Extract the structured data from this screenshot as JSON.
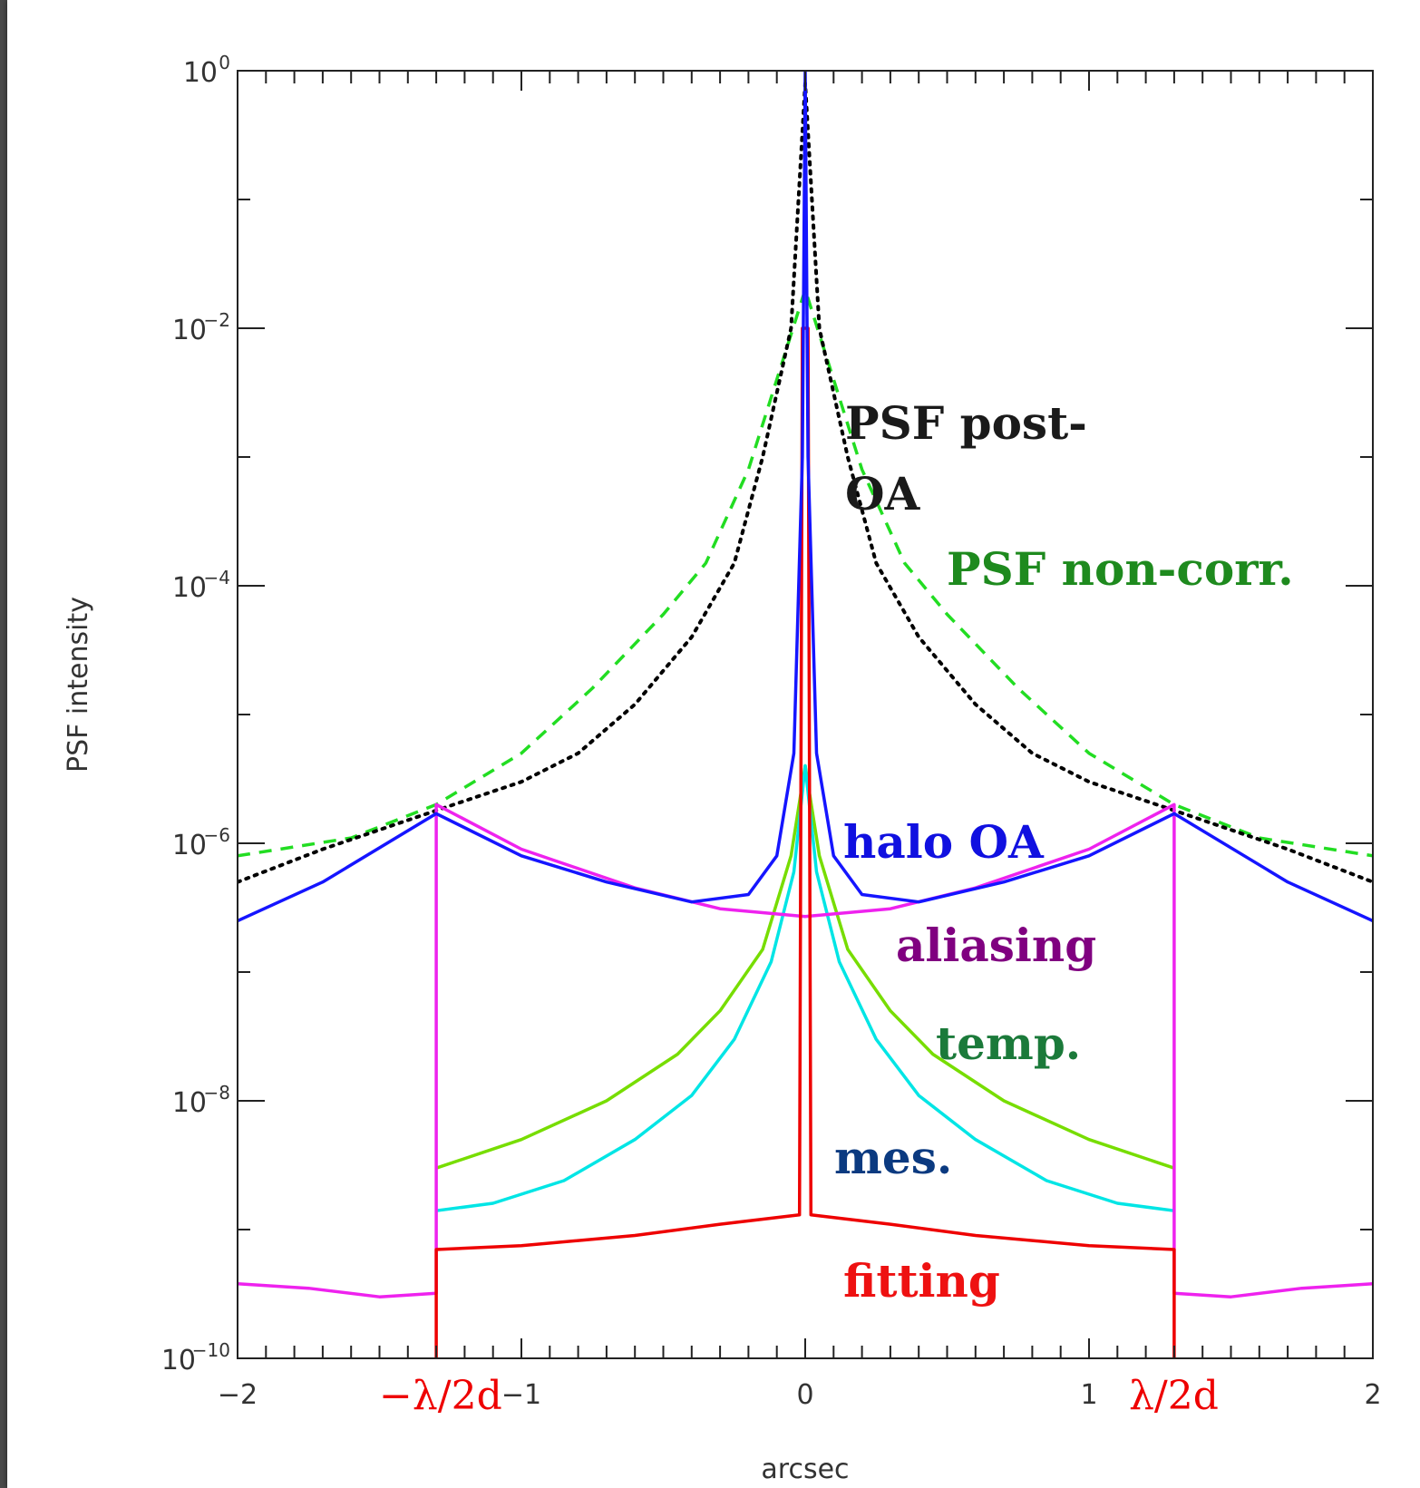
{
  "chart_data": {
    "type": "line",
    "xlabel": "arcsec",
    "ylabel": "PSF intensity",
    "xlim": [
      -2,
      2
    ],
    "ylim": [
      1e-10,
      1
    ],
    "yscale": "log",
    "xticks": [
      "-2",
      "-1",
      "0",
      "1",
      "2"
    ],
    "yticks": [
      {
        "base": "10",
        "exp": "0"
      },
      {
        "base": "10",
        "exp": "−2"
      },
      {
        "base": "10",
        "exp": "−4"
      },
      {
        "base": "10",
        "exp": "−6"
      },
      {
        "base": "10",
        "exp": "−8"
      },
      {
        "base": "10",
        "exp": "−10"
      }
    ],
    "cutoff_labels": {
      "left": "−λ/2d",
      "right": "λ/2d"
    },
    "cutoff_x": 1.3,
    "annotations": [
      {
        "name": "psf-post-oa",
        "text": "PSF post-",
        "text2": "OA",
        "color": "#1a1a1a"
      },
      {
        "name": "psf-non-corr",
        "text": "PSF non-corr.",
        "color": "#1e8a1e"
      },
      {
        "name": "halo-oa",
        "text": "halo OA",
        "color": "#1010e0"
      },
      {
        "name": "aliasing",
        "text": "aliasing",
        "color": "#800080"
      },
      {
        "name": "temp",
        "text": "temp.",
        "color": "#1b7a3a"
      },
      {
        "name": "mes",
        "text": "mes.",
        "color": "#0b3a80"
      },
      {
        "name": "fitting",
        "text": "fitting",
        "color": "#ee1111"
      }
    ],
    "series": [
      {
        "key": "non_corr",
        "color": "#22dd22",
        "style": "dashed",
        "points": [
          [
            -2,
            8e-07
          ],
          [
            -1.6,
            1.1e-06
          ],
          [
            -1.3,
            2e-06
          ],
          [
            -1.0,
            5e-06
          ],
          [
            -0.75,
            1.6e-05
          ],
          [
            -0.5,
            6e-05
          ],
          [
            -0.35,
            0.00015
          ],
          [
            -0.2,
            0.0008
          ],
          [
            -0.1,
            0.004
          ],
          [
            0,
            0.02
          ],
          [
            0.1,
            0.004
          ],
          [
            0.2,
            0.0008
          ],
          [
            0.35,
            0.00015
          ],
          [
            0.5,
            6e-05
          ],
          [
            0.75,
            1.6e-05
          ],
          [
            1.0,
            5e-06
          ],
          [
            1.3,
            2e-06
          ],
          [
            1.6,
            1.1e-06
          ],
          [
            2,
            8e-07
          ]
        ]
      },
      {
        "key": "post_oa",
        "color": "#000000",
        "style": "dotted",
        "points": [
          [
            -2,
            5e-07
          ],
          [
            -1.7,
            9e-07
          ],
          [
            -1.3,
            1.8e-06
          ],
          [
            -1.0,
            3e-06
          ],
          [
            -0.8,
            5e-06
          ],
          [
            -0.6,
            1.2e-05
          ],
          [
            -0.4,
            4e-05
          ],
          [
            -0.25,
            0.00015
          ],
          [
            -0.15,
            0.001
          ],
          [
            -0.05,
            0.01
          ],
          [
            0,
            0.8
          ],
          [
            0.05,
            0.01
          ],
          [
            0.15,
            0.001
          ],
          [
            0.25,
            0.00015
          ],
          [
            0.4,
            4e-05
          ],
          [
            0.6,
            1.2e-05
          ],
          [
            0.8,
            5e-06
          ],
          [
            1.0,
            3e-06
          ],
          [
            1.3,
            1.8e-06
          ],
          [
            1.7,
            9e-07
          ],
          [
            2,
            5e-07
          ]
        ]
      },
      {
        "key": "temporal",
        "color": "#77dd00",
        "style": "solid",
        "points": [
          [
            -1.3,
            3e-09
          ],
          [
            -1.0,
            5e-09
          ],
          [
            -0.7,
            1e-08
          ],
          [
            -0.45,
            2.3e-08
          ],
          [
            -0.3,
            5e-08
          ],
          [
            -0.15,
            1.5e-07
          ],
          [
            -0.05,
            8e-07
          ],
          [
            0,
            4e-06
          ],
          [
            0.05,
            8e-07
          ],
          [
            0.15,
            1.5e-07
          ],
          [
            0.3,
            5e-08
          ],
          [
            0.45,
            2.3e-08
          ],
          [
            0.7,
            1e-08
          ],
          [
            1.0,
            5e-09
          ],
          [
            1.3,
            3e-09
          ]
        ]
      },
      {
        "key": "measurement",
        "color": "#00e5e5",
        "style": "solid",
        "points": [
          [
            -1.3,
            1.4e-09
          ],
          [
            -1.1,
            1.6e-09
          ],
          [
            -0.85,
            2.4e-09
          ],
          [
            -0.6,
            5e-09
          ],
          [
            -0.4,
            1.1e-08
          ],
          [
            -0.25,
            3e-08
          ],
          [
            -0.12,
            1.2e-07
          ],
          [
            -0.04,
            6e-07
          ],
          [
            0,
            4e-06
          ],
          [
            0.04,
            6e-07
          ],
          [
            0.12,
            1.2e-07
          ],
          [
            0.25,
            3e-08
          ],
          [
            0.4,
            1.1e-08
          ],
          [
            0.6,
            5e-09
          ],
          [
            0.85,
            2.4e-09
          ],
          [
            1.1,
            1.6e-09
          ],
          [
            1.3,
            1.4e-09
          ]
        ]
      },
      {
        "key": "aliasing",
        "color": "#ee22ee",
        "style": "solid",
        "points": [
          [
            -2,
            3.8e-10
          ],
          [
            -1.75,
            3.5e-10
          ],
          [
            -1.5,
            3e-10
          ],
          [
            -1.3,
            3.2e-10
          ],
          [
            -1.3,
            2e-06
          ],
          [
            -1.0,
            9e-07
          ],
          [
            -0.6,
            4.5e-07
          ],
          [
            -0.3,
            3.1e-07
          ],
          [
            0,
            2.7e-07
          ],
          [
            0.3,
            3.1e-07
          ],
          [
            0.6,
            4.5e-07
          ],
          [
            1.0,
            9e-07
          ],
          [
            1.3,
            2e-06
          ],
          [
            1.3,
            3.2e-10
          ],
          [
            1.5,
            3e-10
          ],
          [
            1.75,
            3.5e-10
          ],
          [
            2,
            3.8e-10
          ]
        ]
      },
      {
        "key": "fitting",
        "color": "#ee0000",
        "style": "solid",
        "points": [
          [
            -1.3,
            1e-10
          ],
          [
            -1.3,
            7e-10
          ],
          [
            -1.0,
            7.5e-10
          ],
          [
            -0.6,
            9e-10
          ],
          [
            -0.3,
            1.1e-09
          ],
          [
            -0.02,
            1.3e-09
          ],
          [
            -0.01,
            0.01
          ],
          [
            0.01,
            0.01
          ],
          [
            0.02,
            1.3e-09
          ],
          [
            0.3,
            1.1e-09
          ],
          [
            0.6,
            9e-10
          ],
          [
            1.0,
            7.5e-10
          ],
          [
            1.3,
            7e-10
          ],
          [
            1.3,
            1e-10
          ]
        ]
      },
      {
        "key": "halo",
        "color": "#1515ff",
        "style": "solid",
        "points": [
          [
            -2,
            2.5e-07
          ],
          [
            -1.7,
            5e-07
          ],
          [
            -1.3,
            1.7e-06
          ],
          [
            -1.0,
            8e-07
          ],
          [
            -0.7,
            5e-07
          ],
          [
            -0.4,
            3.5e-07
          ],
          [
            -0.2,
            4e-07
          ],
          [
            -0.1,
            8e-07
          ],
          [
            -0.04,
            5e-06
          ],
          [
            -0.01,
            0.001
          ],
          [
            0,
            1
          ],
          [
            0.01,
            0.001
          ],
          [
            0.04,
            5e-06
          ],
          [
            0.1,
            8e-07
          ],
          [
            0.2,
            4e-07
          ],
          [
            0.4,
            3.5e-07
          ],
          [
            0.7,
            5e-07
          ],
          [
            1.0,
            8e-07
          ],
          [
            1.3,
            1.7e-06
          ],
          [
            1.7,
            5e-07
          ],
          [
            2,
            2.5e-07
          ]
        ]
      }
    ]
  }
}
